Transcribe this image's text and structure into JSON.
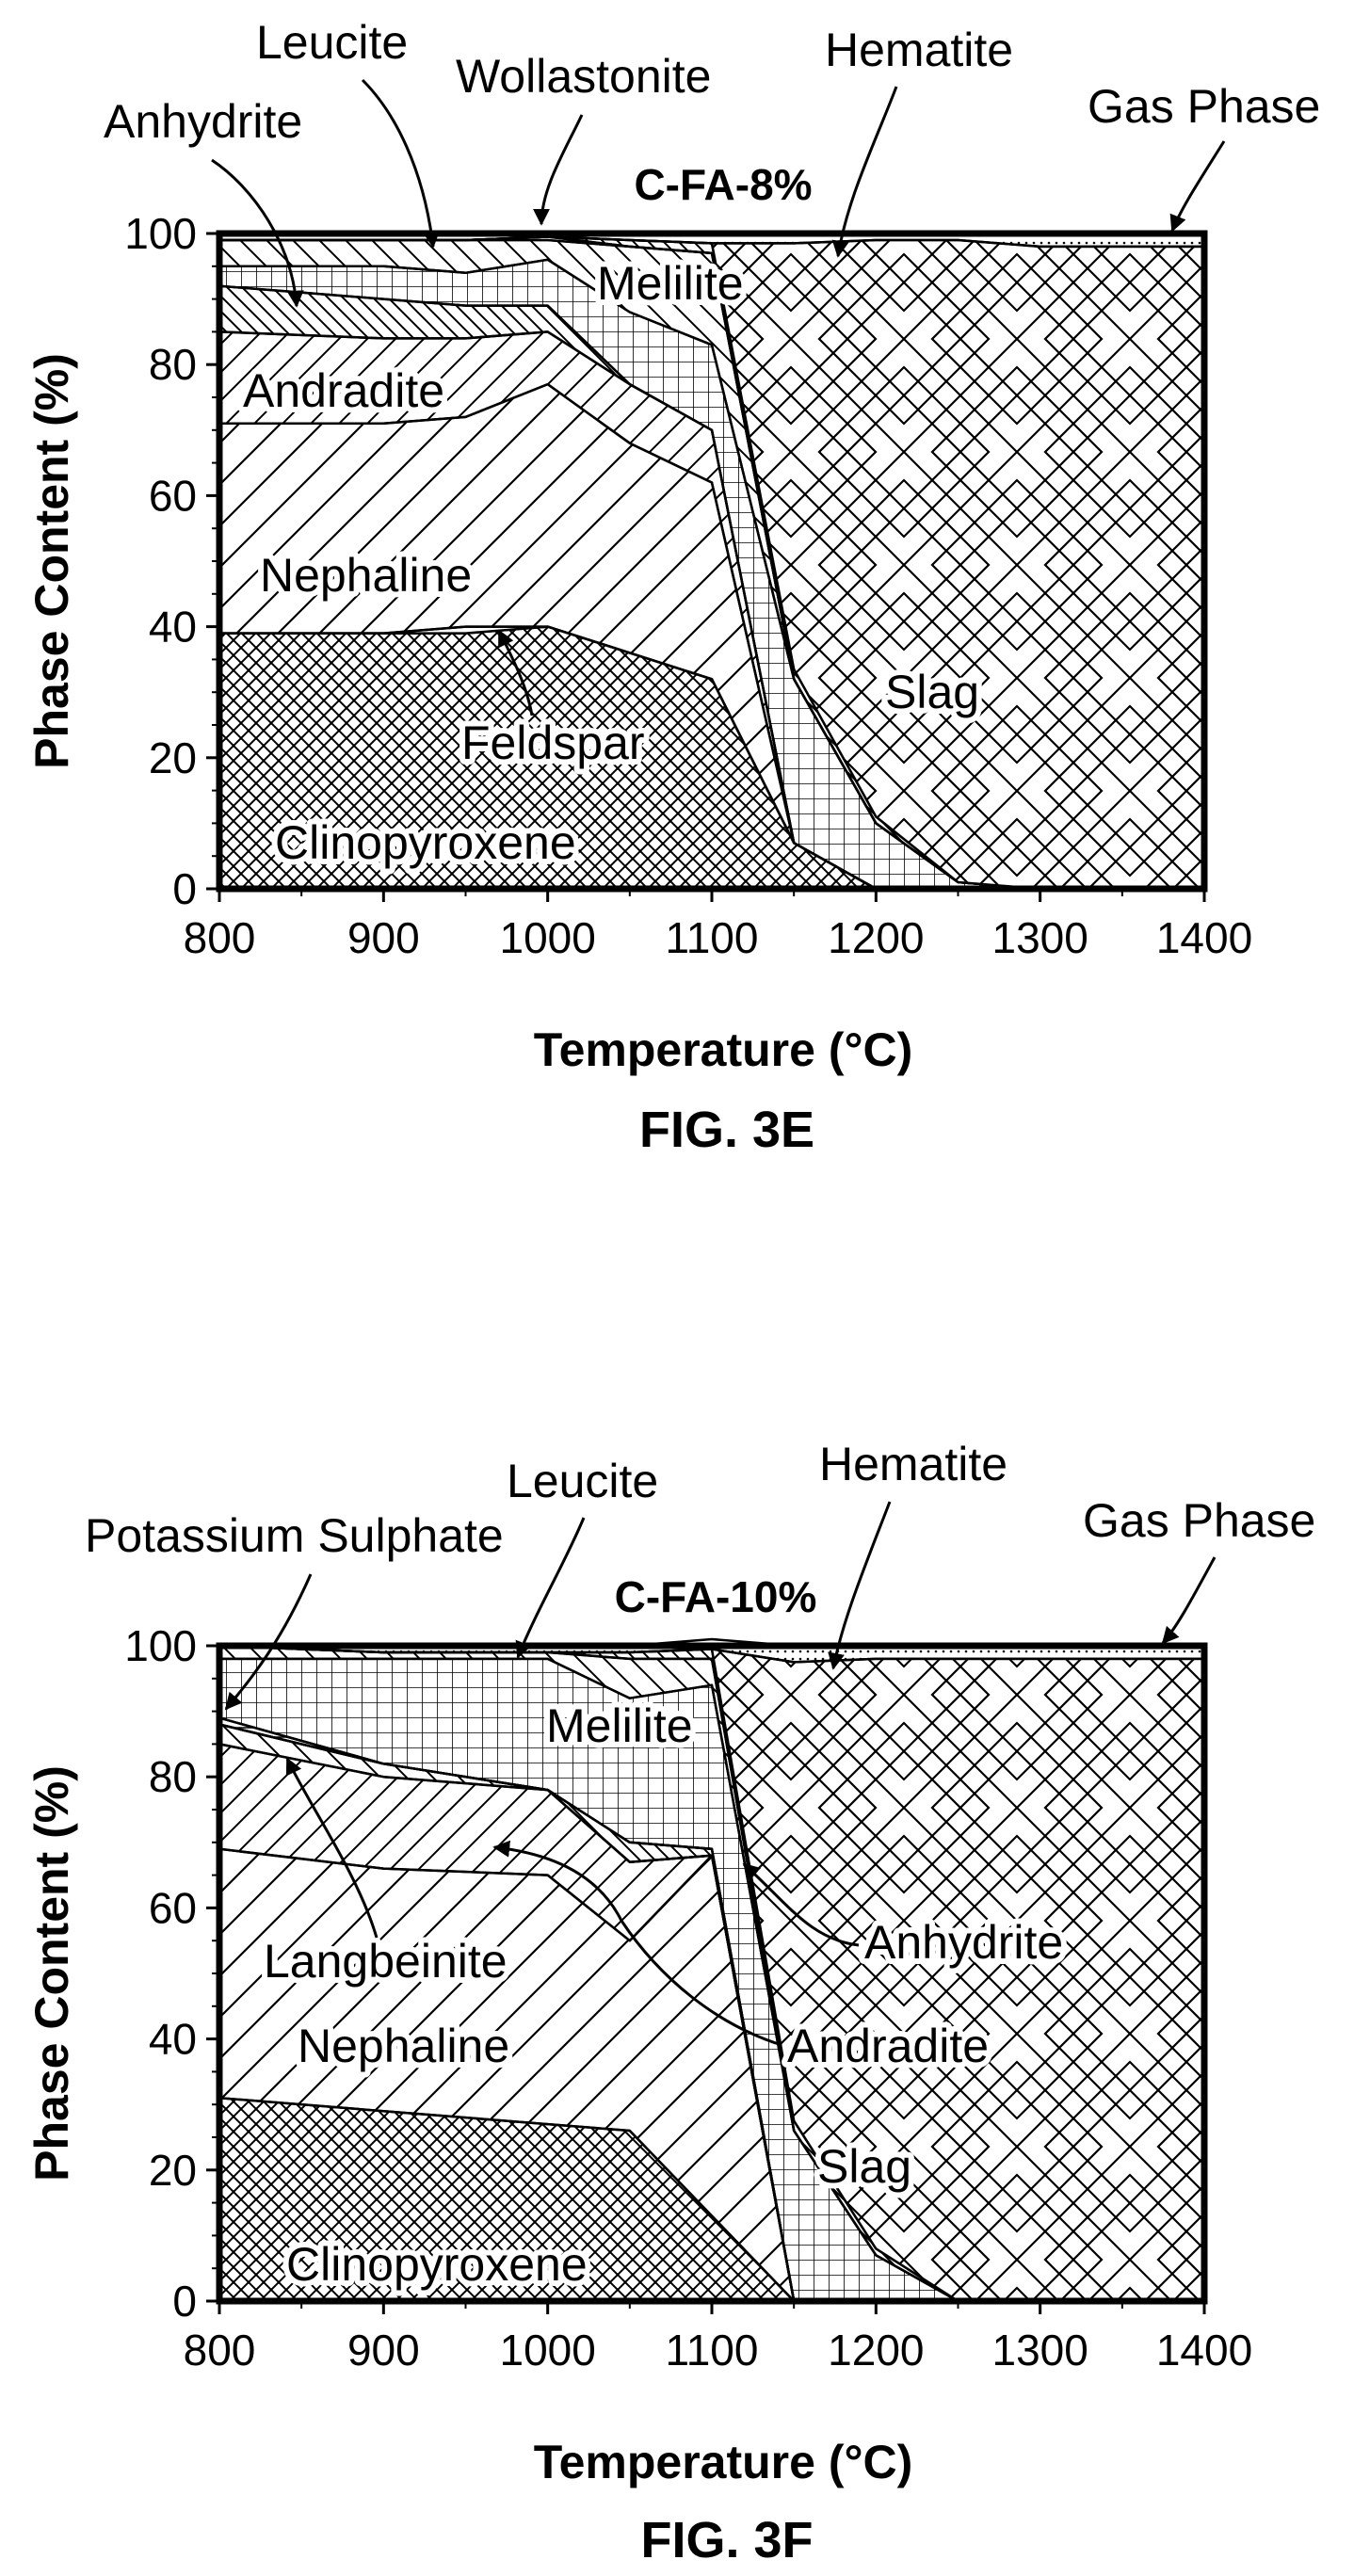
{
  "chart_data": [
    {
      "type": "area",
      "title": "C-FA-8%",
      "caption": "FIG. 3E",
      "xlabel": "Temperature (°C)",
      "ylabel": "Phase Content (%)",
      "xlim": [
        800,
        1400
      ],
      "ylim": [
        0,
        100
      ],
      "xticks": [
        "800",
        "900",
        "1000",
        "1100",
        "1200",
        "1300",
        "1400"
      ],
      "yticks": [
        "0",
        "20",
        "40",
        "60",
        "80",
        "100"
      ],
      "x": [
        800,
        900,
        950,
        1000,
        1050,
        1100,
        1150,
        1200,
        1250,
        1300,
        1350,
        1400
      ],
      "series": [
        {
          "name": "Clinopyroxene",
          "values": [
            39,
            39,
            39,
            40,
            36,
            32,
            7,
            0,
            0,
            0,
            0,
            0
          ]
        },
        {
          "name": "Feldspar",
          "values": [
            0,
            0,
            1,
            0,
            0,
            0,
            0,
            0,
            0,
            0,
            0,
            0
          ]
        },
        {
          "name": "Nephaline",
          "values": [
            32,
            32,
            32,
            37,
            32,
            30,
            0,
            0,
            0,
            0,
            0,
            0
          ]
        },
        {
          "name": "Andradite",
          "values": [
            14,
            13,
            12,
            8,
            9,
            8,
            0,
            0,
            0,
            0,
            0,
            0
          ]
        },
        {
          "name": "Anhydrite",
          "values": [
            7,
            6,
            5,
            4,
            0,
            0,
            0,
            0,
            0,
            0,
            0,
            0
          ]
        },
        {
          "name": "Melilite",
          "values": [
            3,
            5,
            5,
            7,
            11,
            13,
            25,
            10,
            1,
            0,
            0,
            0
          ]
        },
        {
          "name": "Leucite",
          "values": [
            4,
            4,
            5,
            3,
            10,
            14,
            0,
            0,
            0,
            0,
            0,
            0
          ]
        },
        {
          "name": "Wollastonite",
          "values": [
            0,
            0,
            0,
            0.5,
            0,
            0,
            0,
            0,
            0,
            0,
            0,
            0
          ]
        },
        {
          "name": "Hematite",
          "values": [
            0,
            0,
            0,
            0,
            1,
            1.5,
            1.5,
            1,
            0,
            0,
            0,
            0
          ]
        },
        {
          "name": "Slag",
          "values": [
            0,
            0,
            0,
            0,
            0,
            0,
            65,
            88,
            98,
            98,
            98,
            98
          ]
        },
        {
          "name": "Gas Phase",
          "values": [
            1,
            1,
            1,
            0.5,
            1,
            1.5,
            1.5,
            1,
            1,
            2,
            2,
            2
          ]
        }
      ],
      "annotations": [
        "Leucite",
        "Wollastonite",
        "Hematite",
        "Gas Phase",
        "Anhydrite",
        "Melilite",
        "Andradite",
        "Nephaline",
        "Feldspar",
        "Clinopyroxene",
        "Slag"
      ]
    },
    {
      "type": "area",
      "title": "C-FA-10%",
      "caption": "FIG. 3F",
      "xlabel": "Temperature (°C)",
      "ylabel": "Phase Content (%)",
      "xlim": [
        800,
        1400
      ],
      "ylim": [
        0,
        100
      ],
      "xticks": [
        "800",
        "900",
        "1000",
        "1100",
        "1200",
        "1300",
        "1400"
      ],
      "yticks": [
        "0",
        "20",
        "40",
        "60",
        "80",
        "100"
      ],
      "x": [
        800,
        900,
        1000,
        1050,
        1100,
        1150,
        1200,
        1250,
        1300,
        1350,
        1400
      ],
      "series": [
        {
          "name": "Clinopyroxene",
          "values": [
            31,
            29,
            27,
            26,
            13,
            0,
            0,
            0,
            0,
            0,
            0
          ]
        },
        {
          "name": "Nephaline",
          "values": [
            38,
            37,
            38,
            29,
            55,
            0,
            0,
            0,
            0,
            0,
            0
          ]
        },
        {
          "name": "Andradite",
          "values": [
            16,
            14,
            13,
            12,
            0,
            0,
            0,
            0,
            0,
            0,
            0
          ]
        },
        {
          "name": "Langbeinite",
          "values": [
            3,
            2,
            0,
            0,
            0,
            0,
            0,
            0,
            0,
            0,
            0
          ]
        },
        {
          "name": "Anhydrite",
          "values": [
            0,
            0,
            0,
            3,
            1,
            0,
            0,
            0,
            0,
            0,
            0
          ]
        },
        {
          "name": "Potassium Sulphate",
          "values": [
            1,
            0,
            0,
            0,
            0,
            0,
            0,
            0,
            0,
            0,
            0
          ]
        },
        {
          "name": "Melilite",
          "values": [
            9,
            16,
            20,
            22,
            25,
            26,
            7,
            0,
            0,
            0,
            0
          ]
        },
        {
          "name": "Leucite",
          "values": [
            2,
            1,
            1,
            6,
            4,
            0,
            0,
            0,
            0,
            0,
            0
          ]
        },
        {
          "name": "Hematite",
          "values": [
            0,
            0,
            0,
            1,
            1.5,
            1.5,
            1,
            0,
            0,
            0,
            0
          ]
        },
        {
          "name": "Slag",
          "values": [
            0,
            0,
            0,
            0,
            0,
            70,
            90,
            98,
            98,
            98,
            98
          ]
        },
        {
          "name": "Gas Phase",
          "values": [
            0,
            1,
            1,
            1,
            1.5,
            2.5,
            2,
            2,
            2,
            2,
            2
          ]
        }
      ],
      "annotations": [
        "Leucite",
        "Hematite",
        "Potassium Sulphate",
        "Gas Phase",
        "Melilite",
        "Langbeinite",
        "Anhydrite",
        "Nephaline",
        "Andradite",
        "Slag",
        "Clinopyroxene"
      ]
    }
  ]
}
